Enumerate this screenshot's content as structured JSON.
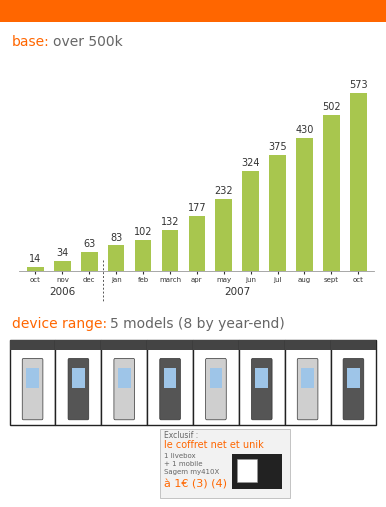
{
  "chart_data": {
    "type": "bar",
    "title": "base: over 500k",
    "categories": [
      "oct",
      "nov",
      "dec",
      "jan",
      "feb",
      "march",
      "apr",
      "may",
      "jun",
      "jul",
      "aug",
      "sept",
      "oct"
    ],
    "category_years": [
      "2006",
      "2006",
      "2006",
      "2007",
      "2007",
      "2007",
      "2007",
      "2007",
      "2007",
      "2007",
      "2007",
      "2007",
      "2007"
    ],
    "values": [
      14,
      34,
      63,
      83,
      102,
      132,
      177,
      232,
      324,
      375,
      430,
      502,
      573
    ],
    "color": "#a8c64e",
    "ylim": [
      0,
      620
    ],
    "data_labels": true,
    "tick_labels": "x",
    "grid": false
  },
  "device_range": {
    "title": "device range: 5 models (8 by year-end)"
  },
  "offer": {
    "lines": [
      "Exclusif :",
      "le coffret net et unik",
      "1 livebox",
      "+ 1 mobile",
      "Sagem my410X",
      "à 1€ (3) (4)"
    ]
  }
}
